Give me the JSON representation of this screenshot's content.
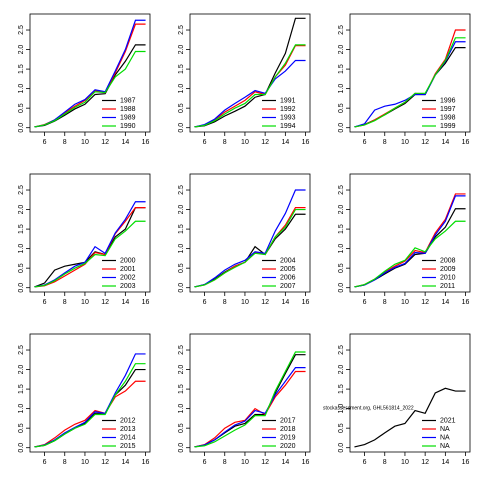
{
  "chart_data": [
    {
      "type": "line",
      "x": [
        5,
        6,
        7,
        8,
        9,
        10,
        11,
        12,
        13,
        14,
        15,
        16
      ],
      "xlim": [
        4.56,
        16.44
      ],
      "xticks": [
        6,
        8,
        10,
        12,
        14,
        16
      ],
      "ylim": [
        -0.11,
        2.91
      ],
      "yticks": [
        {
          "value": 0,
          "label": "0.0"
        },
        0.5,
        {
          "value": 1,
          "label": "1.0"
        },
        1.5,
        {
          "value": 2,
          "label": "2.0"
        },
        2.5
      ],
      "legend": "bottom-right",
      "series": [
        {
          "name": "1987",
          "color": "#000000",
          "values": [
            0.02,
            0.06,
            0.17,
            0.32,
            0.48,
            0.6,
            0.85,
            0.87,
            1.35,
            1.7,
            2.12,
            2.12
          ]
        },
        {
          "name": "1988",
          "color": "#ff0000",
          "values": [
            0.02,
            0.08,
            0.2,
            0.38,
            0.55,
            0.7,
            0.95,
            0.9,
            1.4,
            1.95,
            2.65,
            2.65
          ]
        },
        {
          "name": "1989",
          "color": "#0000ff",
          "values": [
            0.02,
            0.07,
            0.2,
            0.4,
            0.6,
            0.72,
            0.97,
            0.92,
            1.45,
            2.0,
            2.75,
            2.75
          ]
        },
        {
          "name": "1990",
          "color": "#00dd00",
          "values": [
            0.02,
            0.07,
            0.18,
            0.35,
            0.52,
            0.65,
            0.92,
            0.9,
            1.3,
            1.5,
            1.95,
            1.95
          ]
        }
      ]
    },
    {
      "type": "line",
      "x": [
        5,
        6,
        7,
        8,
        9,
        10,
        11,
        12,
        13,
        14,
        15,
        16
      ],
      "xlim": [
        4.56,
        16.44
      ],
      "xticks": [
        6,
        8,
        10,
        12,
        14,
        16
      ],
      "ylim": [
        -0.11,
        2.91
      ],
      "yticks": [
        {
          "value": 0,
          "label": "0.0"
        },
        0.5,
        {
          "value": 1,
          "label": "1.0"
        },
        1.5,
        {
          "value": 2,
          "label": "2.0"
        },
        2.5
      ],
      "legend": "bottom-right",
      "series": [
        {
          "name": "1991",
          "color": "#000000",
          "values": [
            0.02,
            0.05,
            0.15,
            0.3,
            0.42,
            0.55,
            0.78,
            0.85,
            1.4,
            1.9,
            2.8,
            2.8
          ]
        },
        {
          "name": "1992",
          "color": "#ff0000",
          "values": [
            0.02,
            0.07,
            0.2,
            0.4,
            0.55,
            0.7,
            0.92,
            0.85,
            1.3,
            1.6,
            2.1,
            2.1
          ]
        },
        {
          "name": "1993",
          "color": "#0000ff",
          "values": [
            0.02,
            0.08,
            0.22,
            0.45,
            0.62,
            0.78,
            0.95,
            0.88,
            1.25,
            1.45,
            1.72,
            1.72
          ]
        },
        {
          "name": "1994",
          "color": "#00dd00",
          "values": [
            0.02,
            0.06,
            0.18,
            0.35,
            0.5,
            0.62,
            0.85,
            0.85,
            1.3,
            1.65,
            2.12,
            2.12
          ]
        }
      ]
    },
    {
      "type": "line",
      "x": [
        5,
        6,
        7,
        8,
        9,
        10,
        11,
        12,
        13,
        14,
        15,
        16
      ],
      "xlim": [
        4.56,
        16.44
      ],
      "xticks": [
        6,
        8,
        10,
        12,
        14,
        16
      ],
      "ylim": [
        -0.11,
        2.91
      ],
      "yticks": [
        {
          "value": 0,
          "label": "0.0"
        },
        0.5,
        {
          "value": 1,
          "label": "1.0"
        },
        1.5,
        {
          "value": 2,
          "label": "2.0"
        },
        2.5
      ],
      "legend": "bottom-right",
      "series": [
        {
          "name": "1996",
          "color": "#000000",
          "values": [
            0.02,
            0.08,
            0.2,
            0.33,
            0.48,
            0.62,
            0.85,
            0.85,
            1.35,
            1.65,
            2.05,
            2.05
          ]
        },
        {
          "name": "1997",
          "color": "#ff0000",
          "values": [
            0.02,
            0.07,
            0.2,
            0.35,
            0.5,
            0.65,
            0.88,
            0.85,
            1.38,
            1.75,
            2.5,
            2.5
          ]
        },
        {
          "name": "1998",
          "color": "#0000ff",
          "values": [
            0.02,
            0.1,
            0.45,
            0.55,
            0.6,
            0.7,
            0.85,
            0.85,
            1.35,
            1.7,
            2.2,
            2.2
          ]
        },
        {
          "name": "1999",
          "color": "#00dd00",
          "values": [
            0.02,
            0.07,
            0.18,
            0.33,
            0.5,
            0.65,
            0.88,
            0.88,
            1.35,
            1.72,
            2.3,
            2.3
          ]
        }
      ]
    },
    {
      "type": "line",
      "x": [
        5,
        6,
        7,
        8,
        9,
        10,
        11,
        12,
        13,
        14,
        15,
        16
      ],
      "xlim": [
        4.56,
        16.44
      ],
      "xticks": [
        6,
        8,
        10,
        12,
        14,
        16
      ],
      "ylim": [
        -0.11,
        2.91
      ],
      "yticks": [
        {
          "value": 0,
          "label": "0.0"
        },
        0.5,
        {
          "value": 1,
          "label": "1.0"
        },
        1.5,
        {
          "value": 2,
          "label": "2.0"
        },
        2.5
      ],
      "legend": "bottom-right",
      "series": [
        {
          "name": "2000",
          "color": "#000000",
          "values": [
            0.02,
            0.12,
            0.45,
            0.55,
            0.6,
            0.65,
            0.92,
            0.85,
            1.3,
            1.5,
            2.05,
            2.05
          ]
        },
        {
          "name": "2001",
          "color": "#ff0000",
          "values": [
            0.02,
            0.05,
            0.15,
            0.3,
            0.45,
            0.6,
            0.9,
            0.85,
            1.38,
            1.7,
            2.05,
            2.05
          ]
        },
        {
          "name": "2002",
          "color": "#0000ff",
          "values": [
            0.02,
            0.07,
            0.2,
            0.38,
            0.55,
            0.65,
            1.05,
            0.88,
            1.4,
            1.75,
            2.2,
            2.2
          ]
        },
        {
          "name": "2003",
          "color": "#00dd00",
          "values": [
            0.02,
            0.06,
            0.18,
            0.35,
            0.5,
            0.62,
            0.85,
            0.82,
            1.25,
            1.45,
            1.7,
            1.7
          ]
        }
      ]
    },
    {
      "type": "line",
      "x": [
        5,
        6,
        7,
        8,
        9,
        10,
        11,
        12,
        13,
        14,
        15,
        16
      ],
      "xlim": [
        4.56,
        16.44
      ],
      "xticks": [
        6,
        8,
        10,
        12,
        14,
        16
      ],
      "ylim": [
        -0.11,
        2.91
      ],
      "yticks": [
        {
          "value": 0,
          "label": "0.0"
        },
        0.5,
        {
          "value": 1,
          "label": "1.0"
        },
        1.5,
        {
          "value": 2,
          "label": "2.0"
        },
        2.5
      ],
      "legend": "bottom-right",
      "series": [
        {
          "name": "2004",
          "color": "#000000",
          "values": [
            0.02,
            0.08,
            0.22,
            0.4,
            0.55,
            0.65,
            1.05,
            0.85,
            1.25,
            1.5,
            1.88,
            1.88
          ]
        },
        {
          "name": "2005",
          "color": "#ff0000",
          "values": [
            0.02,
            0.07,
            0.2,
            0.38,
            0.55,
            0.65,
            0.9,
            0.85,
            1.3,
            1.6,
            2.05,
            2.05
          ]
        },
        {
          "name": "2006",
          "color": "#0000ff",
          "values": [
            0.02,
            0.08,
            0.25,
            0.45,
            0.6,
            0.7,
            0.92,
            0.88,
            1.45,
            1.9,
            2.5,
            2.5
          ]
        },
        {
          "name": "2007",
          "color": "#00dd00",
          "values": [
            0.02,
            0.07,
            0.2,
            0.38,
            0.52,
            0.65,
            0.88,
            0.85,
            1.3,
            1.55,
            2.0,
            2.0
          ]
        }
      ]
    },
    {
      "type": "line",
      "x": [
        5,
        6,
        7,
        8,
        9,
        10,
        11,
        12,
        13,
        14,
        15,
        16
      ],
      "xlim": [
        4.56,
        16.44
      ],
      "xticks": [
        6,
        8,
        10,
        12,
        14,
        16
      ],
      "ylim": [
        -0.11,
        2.91
      ],
      "yticks": [
        {
          "value": 0,
          "label": "0.0"
        },
        0.5,
        {
          "value": 1,
          "label": "1.0"
        },
        1.5,
        {
          "value": 2,
          "label": "2.0"
        },
        2.5
      ],
      "legend": "bottom-right",
      "series": [
        {
          "name": "2008",
          "color": "#000000",
          "values": [
            0.02,
            0.07,
            0.2,
            0.35,
            0.5,
            0.6,
            0.85,
            0.88,
            1.3,
            1.55,
            2.02,
            2.02
          ]
        },
        {
          "name": "2009",
          "color": "#ff0000",
          "values": [
            0.02,
            0.08,
            0.22,
            0.4,
            0.55,
            0.68,
            0.95,
            0.9,
            1.4,
            1.75,
            2.4,
            2.4
          ]
        },
        {
          "name": "2010",
          "color": "#0000ff",
          "values": [
            0.02,
            0.07,
            0.2,
            0.38,
            0.52,
            0.62,
            0.9,
            0.88,
            1.35,
            1.7,
            2.35,
            2.35
          ]
        },
        {
          "name": "2011",
          "color": "#00dd00",
          "values": [
            0.02,
            0.08,
            0.22,
            0.42,
            0.6,
            0.7,
            1.02,
            0.92,
            1.25,
            1.45,
            1.7,
            1.7
          ]
        }
      ]
    },
    {
      "type": "line",
      "x": [
        5,
        6,
        7,
        8,
        9,
        10,
        11,
        12,
        13,
        14,
        15,
        16
      ],
      "xlim": [
        4.56,
        16.44
      ],
      "xticks": [
        6,
        8,
        10,
        12,
        14,
        16
      ],
      "ylim": [
        -0.11,
        2.91
      ],
      "yticks": [
        {
          "value": 0,
          "label": "0.0"
        },
        0.5,
        {
          "value": 1,
          "label": "1.0"
        },
        1.5,
        {
          "value": 2,
          "label": "2.0"
        },
        2.5
      ],
      "legend": "bottom-right",
      "series": [
        {
          "name": "2012",
          "color": "#000000",
          "values": [
            0.02,
            0.06,
            0.18,
            0.35,
            0.5,
            0.62,
            0.88,
            0.88,
            1.35,
            1.6,
            2.0,
            2.0
          ]
        },
        {
          "name": "2013",
          "color": "#ff0000",
          "values": [
            0.02,
            0.08,
            0.25,
            0.45,
            0.6,
            0.7,
            0.95,
            0.88,
            1.3,
            1.45,
            1.7,
            1.7
          ]
        },
        {
          "name": "2014",
          "color": "#0000ff",
          "values": [
            0.02,
            0.07,
            0.2,
            0.38,
            0.52,
            0.65,
            0.92,
            0.88,
            1.4,
            1.85,
            2.4,
            2.4
          ]
        },
        {
          "name": "2015",
          "color": "#00dd00",
          "values": [
            0.02,
            0.06,
            0.18,
            0.35,
            0.5,
            0.6,
            0.85,
            0.85,
            1.35,
            1.7,
            2.15,
            2.15
          ]
        }
      ]
    },
    {
      "type": "line",
      "x": [
        5,
        6,
        7,
        8,
        9,
        10,
        11,
        12,
        13,
        14,
        15,
        16
      ],
      "xlim": [
        4.56,
        16.44
      ],
      "xticks": [
        6,
        8,
        10,
        12,
        14,
        16
      ],
      "ylim": [
        -0.11,
        2.91
      ],
      "yticks": [
        {
          "value": 0,
          "label": "0.0"
        },
        0.5,
        {
          "value": 1,
          "label": "1.0"
        },
        1.5,
        {
          "value": 2,
          "label": "2.0"
        },
        2.5
      ],
      "legend": "bottom-right",
      "series": [
        {
          "name": "2017",
          "color": "#000000",
          "values": [
            0.02,
            0.07,
            0.2,
            0.38,
            0.55,
            0.62,
            0.85,
            0.85,
            1.4,
            1.9,
            2.38,
            2.38
          ]
        },
        {
          "name": "2018",
          "color": "#ff0000",
          "values": [
            0.02,
            0.08,
            0.25,
            0.5,
            0.65,
            0.7,
            1.0,
            0.85,
            1.3,
            1.6,
            1.95,
            1.95
          ]
        },
        {
          "name": "2019",
          "color": "#0000ff",
          "values": [
            0.02,
            0.07,
            0.2,
            0.4,
            0.58,
            0.68,
            0.95,
            0.88,
            1.35,
            1.7,
            2.05,
            2.05
          ]
        },
        {
          "name": "2020",
          "color": "#00dd00",
          "values": [
            0.02,
            0.05,
            0.15,
            0.3,
            0.45,
            0.58,
            0.82,
            0.82,
            1.45,
            1.95,
            2.45,
            2.45
          ]
        }
      ]
    },
    {
      "type": "line",
      "x": [
        5,
        6,
        7,
        8,
        9,
        10,
        11,
        12,
        13,
        14,
        15,
        16
      ],
      "xlim": [
        4.56,
        16.44
      ],
      "xticks": [
        6,
        8,
        10,
        12,
        14,
        16
      ],
      "ylim": [
        -0.11,
        2.91
      ],
      "yticks": [
        {
          "value": 0,
          "label": "0.0"
        },
        0.5,
        {
          "value": 1,
          "label": "1.0"
        },
        1.5,
        {
          "value": 2,
          "label": "2.0"
        },
        2.5
      ],
      "legend": "bottom-right",
      "annotation": "stockassessment.org, GHL561814_2022",
      "series": [
        {
          "name": "2021",
          "color": "#000000",
          "values": [
            0.02,
            0.08,
            0.2,
            0.38,
            0.55,
            0.62,
            0.95,
            0.88,
            1.4,
            1.52,
            1.45,
            1.45
          ]
        },
        {
          "name": "NA",
          "color": "#ff0000",
          "values": [
            null,
            null,
            null,
            null,
            null,
            null,
            null,
            null,
            null,
            null,
            null,
            null
          ]
        },
        {
          "name": "NA",
          "color": "#0000ff",
          "values": [
            null,
            null,
            null,
            null,
            null,
            null,
            null,
            null,
            null,
            null,
            null,
            null
          ]
        },
        {
          "name": "NA",
          "color": "#00dd00",
          "values": [
            null,
            null,
            null,
            null,
            null,
            null,
            null,
            null,
            null,
            null,
            null,
            null
          ]
        }
      ]
    }
  ]
}
